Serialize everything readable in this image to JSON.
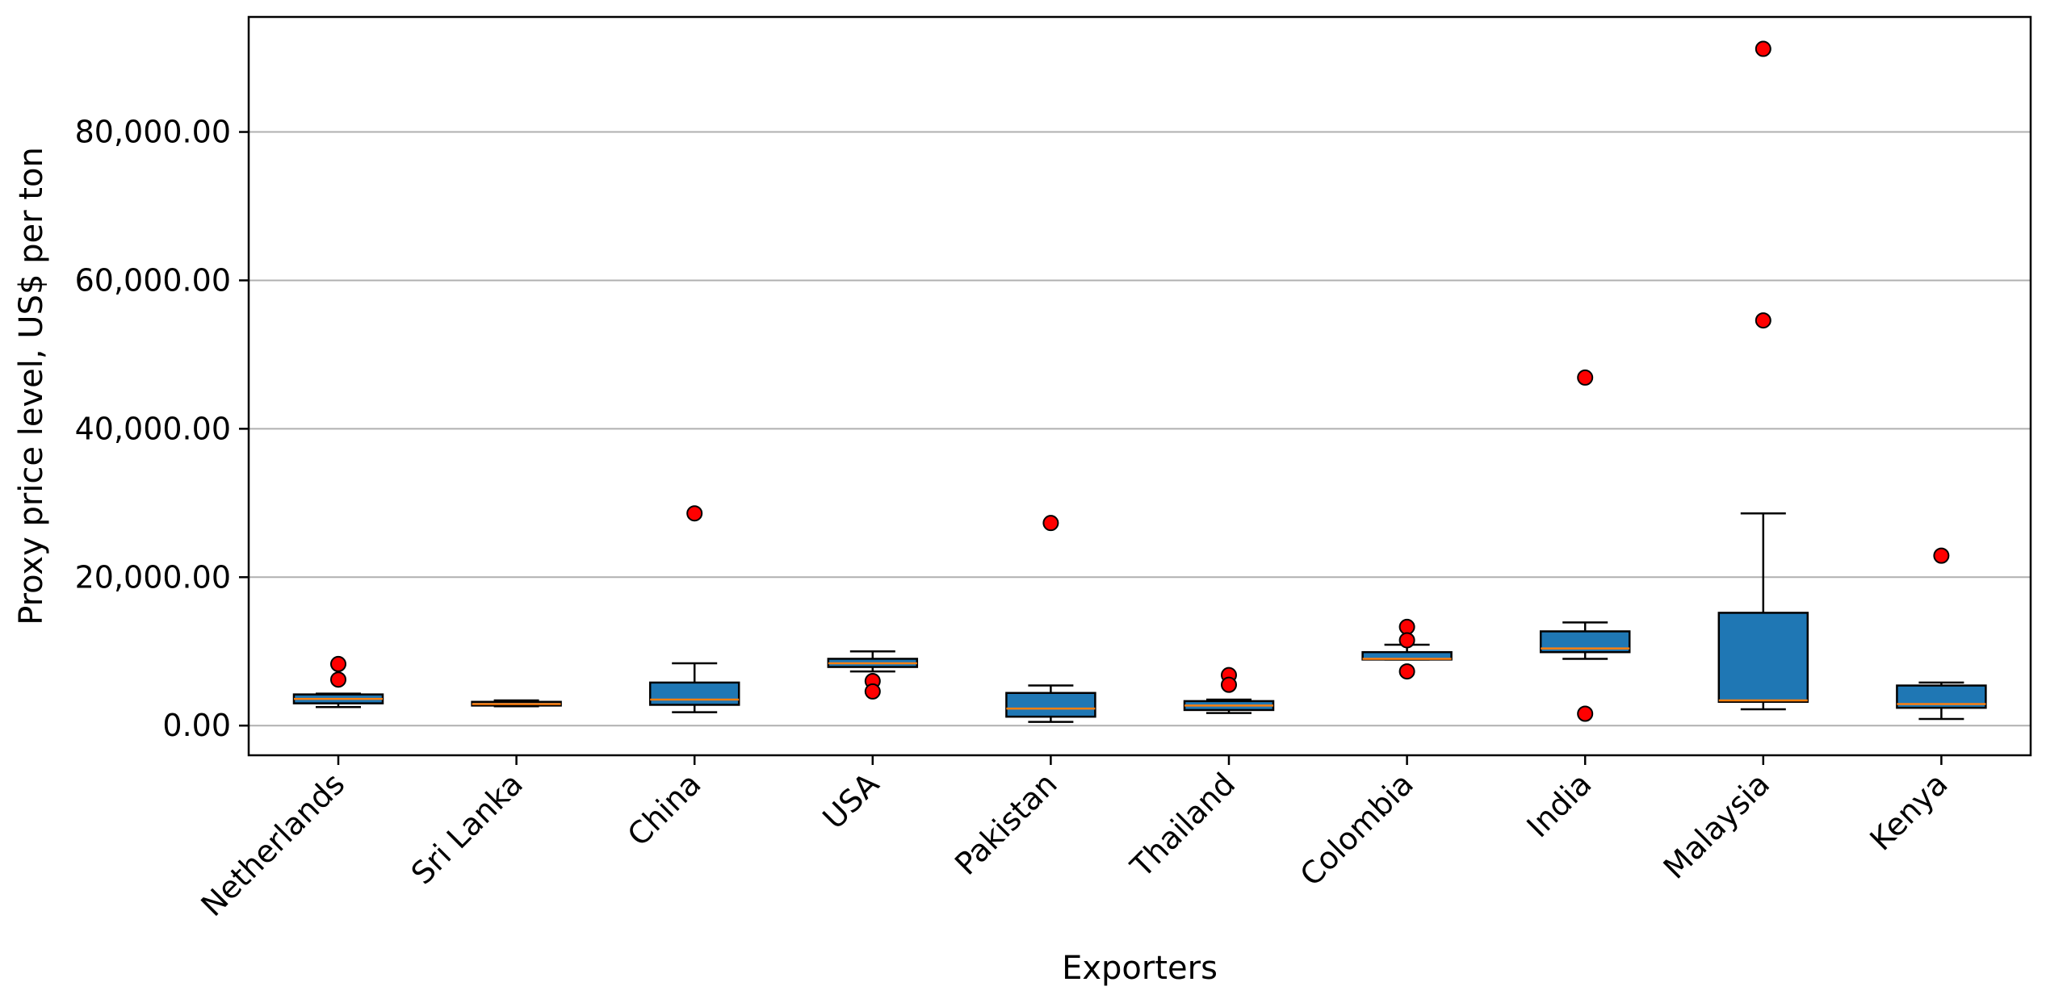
{
  "chart_data": {
    "type": "boxplot",
    "xlabel": "Exporters",
    "ylabel": "Proxy price level, US$ per ton",
    "ylim": [
      -4000,
      95500
    ],
    "yticks": [
      0,
      20000,
      40000,
      60000,
      80000
    ],
    "ytick_labels": [
      "0.00",
      "20,000.00",
      "40,000.00",
      "60,000.00",
      "80,000.00"
    ],
    "grid": "horizontal",
    "colors": {
      "box": "#1f77b4",
      "median": "#ff7f0e",
      "outlier": "#ff0000",
      "grid": "#b0b0b0"
    },
    "categories": [
      "Netherlands",
      "Sri Lanka",
      "China",
      "USA",
      "Pakistan",
      "Thailand",
      "Colombia",
      "India",
      "Malaysia",
      "Kenya"
    ],
    "boxes": [
      {
        "whisker_low": 2500,
        "q1": 3000,
        "median": 3600,
        "q3": 4200,
        "whisker_high": 4300,
        "outliers": [
          8300,
          6200
        ]
      },
      {
        "whisker_low": 2600,
        "q1": 2700,
        "median": 2900,
        "q3": 3200,
        "whisker_high": 3400,
        "outliers": []
      },
      {
        "whisker_low": 1800,
        "q1": 2800,
        "median": 3500,
        "q3": 5800,
        "whisker_high": 8400,
        "outliers": [
          28600
        ]
      },
      {
        "whisker_low": 7300,
        "q1": 7900,
        "median": 8400,
        "q3": 9000,
        "whisker_high": 10000,
        "outliers": [
          6000,
          4600
        ]
      },
      {
        "whisker_low": 500,
        "q1": 1200,
        "median": 2300,
        "q3": 4400,
        "whisker_high": 5400,
        "outliers": [
          27300
        ]
      },
      {
        "whisker_low": 1700,
        "q1": 2100,
        "median": 2700,
        "q3": 3300,
        "whisker_high": 3500,
        "outliers": [
          6800,
          5500
        ]
      },
      {
        "whisker_low": 8900,
        "q1": 8900,
        "median": 9000,
        "q3": 9900,
        "whisker_high": 10900,
        "outliers": [
          13300,
          11500,
          7300
        ]
      },
      {
        "whisker_low": 9000,
        "q1": 9900,
        "median": 10400,
        "q3": 12700,
        "whisker_high": 13900,
        "outliers": [
          46900,
          1600
        ]
      },
      {
        "whisker_low": 2200,
        "q1": 3200,
        "median": 3400,
        "q3": 15200,
        "whisker_high": 28600,
        "outliers": [
          91200,
          54600
        ]
      },
      {
        "whisker_low": 900,
        "q1": 2400,
        "median": 2900,
        "q3": 5400,
        "whisker_high": 5800,
        "outliers": [
          22900
        ]
      }
    ]
  }
}
